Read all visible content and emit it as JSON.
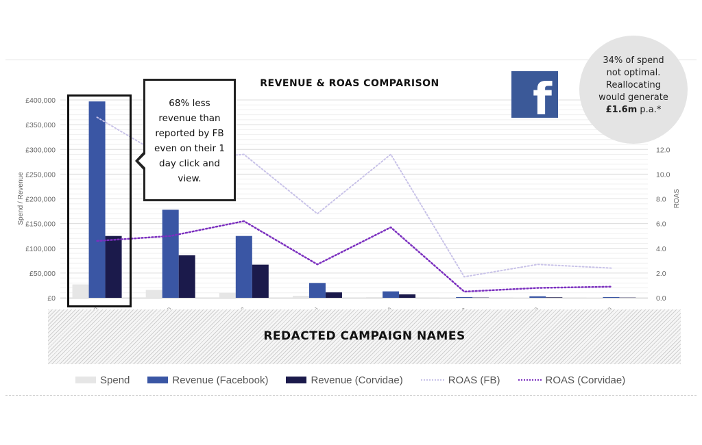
{
  "callout": {
    "line1": "68% less",
    "line2": "revenue than",
    "line3": "reported by FB",
    "line4": "even on their 1",
    "line5": "day click and",
    "line6": "view."
  },
  "bubble": {
    "line1": "34% of spend",
    "line2": "not optimal.",
    "line3": "Reallocating",
    "line4": "would generate",
    "line5_bold": "£1.6m",
    "line5_rest": " p.a.*"
  },
  "redaction_label": "REDACTED CAMPAIGN NAMES",
  "icons": {
    "logo": "facebook-icon"
  },
  "colors": {
    "spend": "#e6e6e6",
    "revenue_facebook": "#3a56a4",
    "revenue_corvidae": "#1b1a4b",
    "roas_fb": "#c8c2e8",
    "roas_corvidae": "#7b2fbf"
  },
  "chart_data": {
    "type": "bar",
    "title": "REVENUE & ROAS COMPARISON",
    "ylabel": "Spend / Revenue",
    "y2label": "ROAS",
    "ylim": [
      0,
      400000
    ],
    "y2lim": [
      0,
      16
    ],
    "yticks": [
      "£0",
      "£50,000",
      "£100,000",
      "£150,000",
      "£200,000",
      "£250,000",
      "£300,000",
      "£350,000",
      "£400,000"
    ],
    "y2ticks": [
      "0.0",
      "2.0",
      "4.0",
      "6.0",
      "8.0",
      "10.0",
      "12.0"
    ],
    "categories": [
      "O",
      "PO",
      "A 2",
      "ry)",
      "(W)",
      "lite",
      "(all)",
      "(all)"
    ],
    "series": [
      {
        "name": "Spend",
        "kind": "bar",
        "values": [
          27000,
          16000,
          10000,
          4000,
          1500,
          500,
          500,
          500
        ]
      },
      {
        "name": "Revenue (Facebook)",
        "kind": "bar",
        "values": [
          397000,
          178000,
          125000,
          30000,
          13000,
          1500,
          3000,
          1500
        ]
      },
      {
        "name": "Revenue (Corvidae)",
        "kind": "bar",
        "values": [
          125000,
          86000,
          67000,
          11000,
          7000,
          500,
          1000,
          500
        ]
      },
      {
        "name": "ROAS (FB)",
        "kind": "line",
        "axis": "right",
        "values": [
          14.6,
          11.1,
          11.6,
          6.8,
          11.6,
          1.7,
          2.7,
          2.4
        ]
      },
      {
        "name": "ROAS (Corvidae)",
        "kind": "line",
        "axis": "right",
        "values": [
          4.6,
          5.0,
          6.2,
          2.7,
          5.7,
          0.5,
          0.8,
          0.9
        ]
      }
    ],
    "legend_position": "bottom",
    "grid": true
  }
}
